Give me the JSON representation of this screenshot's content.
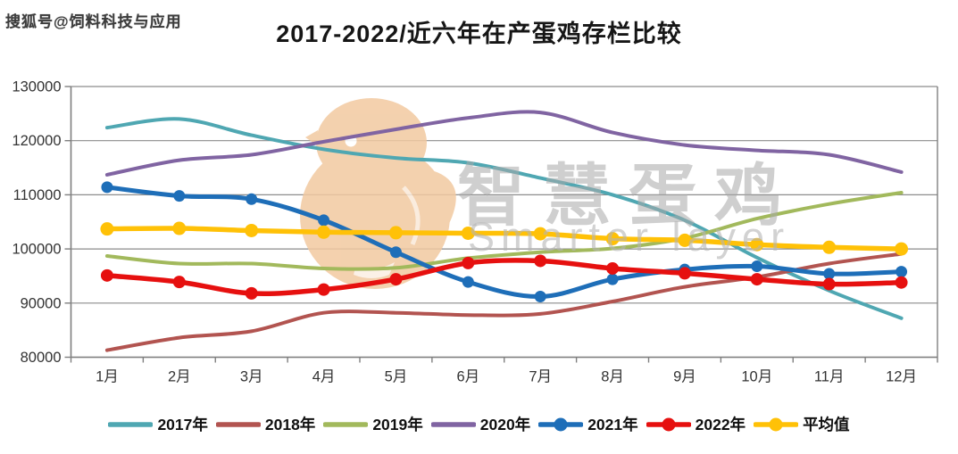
{
  "page": {
    "background": "#ffffff"
  },
  "header": {
    "sohu_watermark": "搜狐号@饲料科技与应用",
    "title": "2017-2022/近六年在产蛋鸡存栏比较"
  },
  "watermark": {
    "cn_text": "智慧蛋鸡",
    "en_text": "Smarter layer",
    "chick_color": "#F2C9A0",
    "cn_color": "#a9a9a9",
    "en_color": "#b5b5b5"
  },
  "axis_style": {
    "grid_color": "#8c8c8c",
    "axis_color": "#7f7f7f",
    "tick_label_color": "#333333",
    "tick_font_size": 16.5
  },
  "chart_data": {
    "type": "line",
    "title": "2017-2022/近六年在产蛋鸡存栏比较",
    "categories": [
      "1月",
      "2月",
      "3月",
      "4月",
      "5月",
      "6月",
      "7月",
      "8月",
      "9月",
      "10月",
      "11月",
      "12月"
    ],
    "ylim": [
      80000,
      130000
    ],
    "yticks": [
      80000,
      90000,
      100000,
      110000,
      120000,
      130000
    ],
    "grid": true,
    "legend_position": "bottom",
    "series": [
      {
        "name": "2017年",
        "color": "#4FA7B2",
        "width": 4,
        "marker": false,
        "values": [
          122400,
          124000,
          121000,
          118400,
          116800,
          115900,
          113100,
          110000,
          105300,
          98400,
          92300,
          87200
        ]
      },
      {
        "name": "2018年",
        "color": "#B25450",
        "width": 4,
        "marker": false,
        "values": [
          81300,
          83600,
          84800,
          88200,
          88200,
          87800,
          88000,
          90300,
          93000,
          94800,
          97300,
          99100
        ]
      },
      {
        "name": "2019年",
        "color": "#A2B95C",
        "width": 4,
        "marker": false,
        "values": [
          98700,
          97300,
          97300,
          96400,
          96500,
          98300,
          99400,
          100100,
          102000,
          105600,
          108300,
          110400
        ]
      },
      {
        "name": "2020年",
        "color": "#8064A2",
        "width": 4,
        "marker": false,
        "values": [
          113700,
          116400,
          117400,
          119800,
          122100,
          124200,
          125200,
          121500,
          119200,
          118200,
          117400,
          114200
        ]
      },
      {
        "name": "2021年",
        "color": "#1E6EB8",
        "width": 5,
        "marker": true,
        "marker_r": 6.5,
        "values": [
          111400,
          109800,
          109200,
          105300,
          99400,
          93900,
          91200,
          94400,
          96200,
          96800,
          95400,
          95800
        ]
      },
      {
        "name": "2022年",
        "color": "#E6100F",
        "width": 5.5,
        "marker": true,
        "marker_r": 7,
        "values": [
          95100,
          93900,
          91800,
          92500,
          94400,
          97400,
          97800,
          96400,
          95500,
          94400,
          93500,
          93800
        ]
      },
      {
        "name": "平均值",
        "color": "#FFC107",
        "width": 5.5,
        "marker": true,
        "marker_r": 7.5,
        "values": [
          103700,
          103800,
          103400,
          103100,
          103000,
          102900,
          102800,
          101900,
          101600,
          100800,
          100300,
          100000
        ]
      }
    ]
  }
}
